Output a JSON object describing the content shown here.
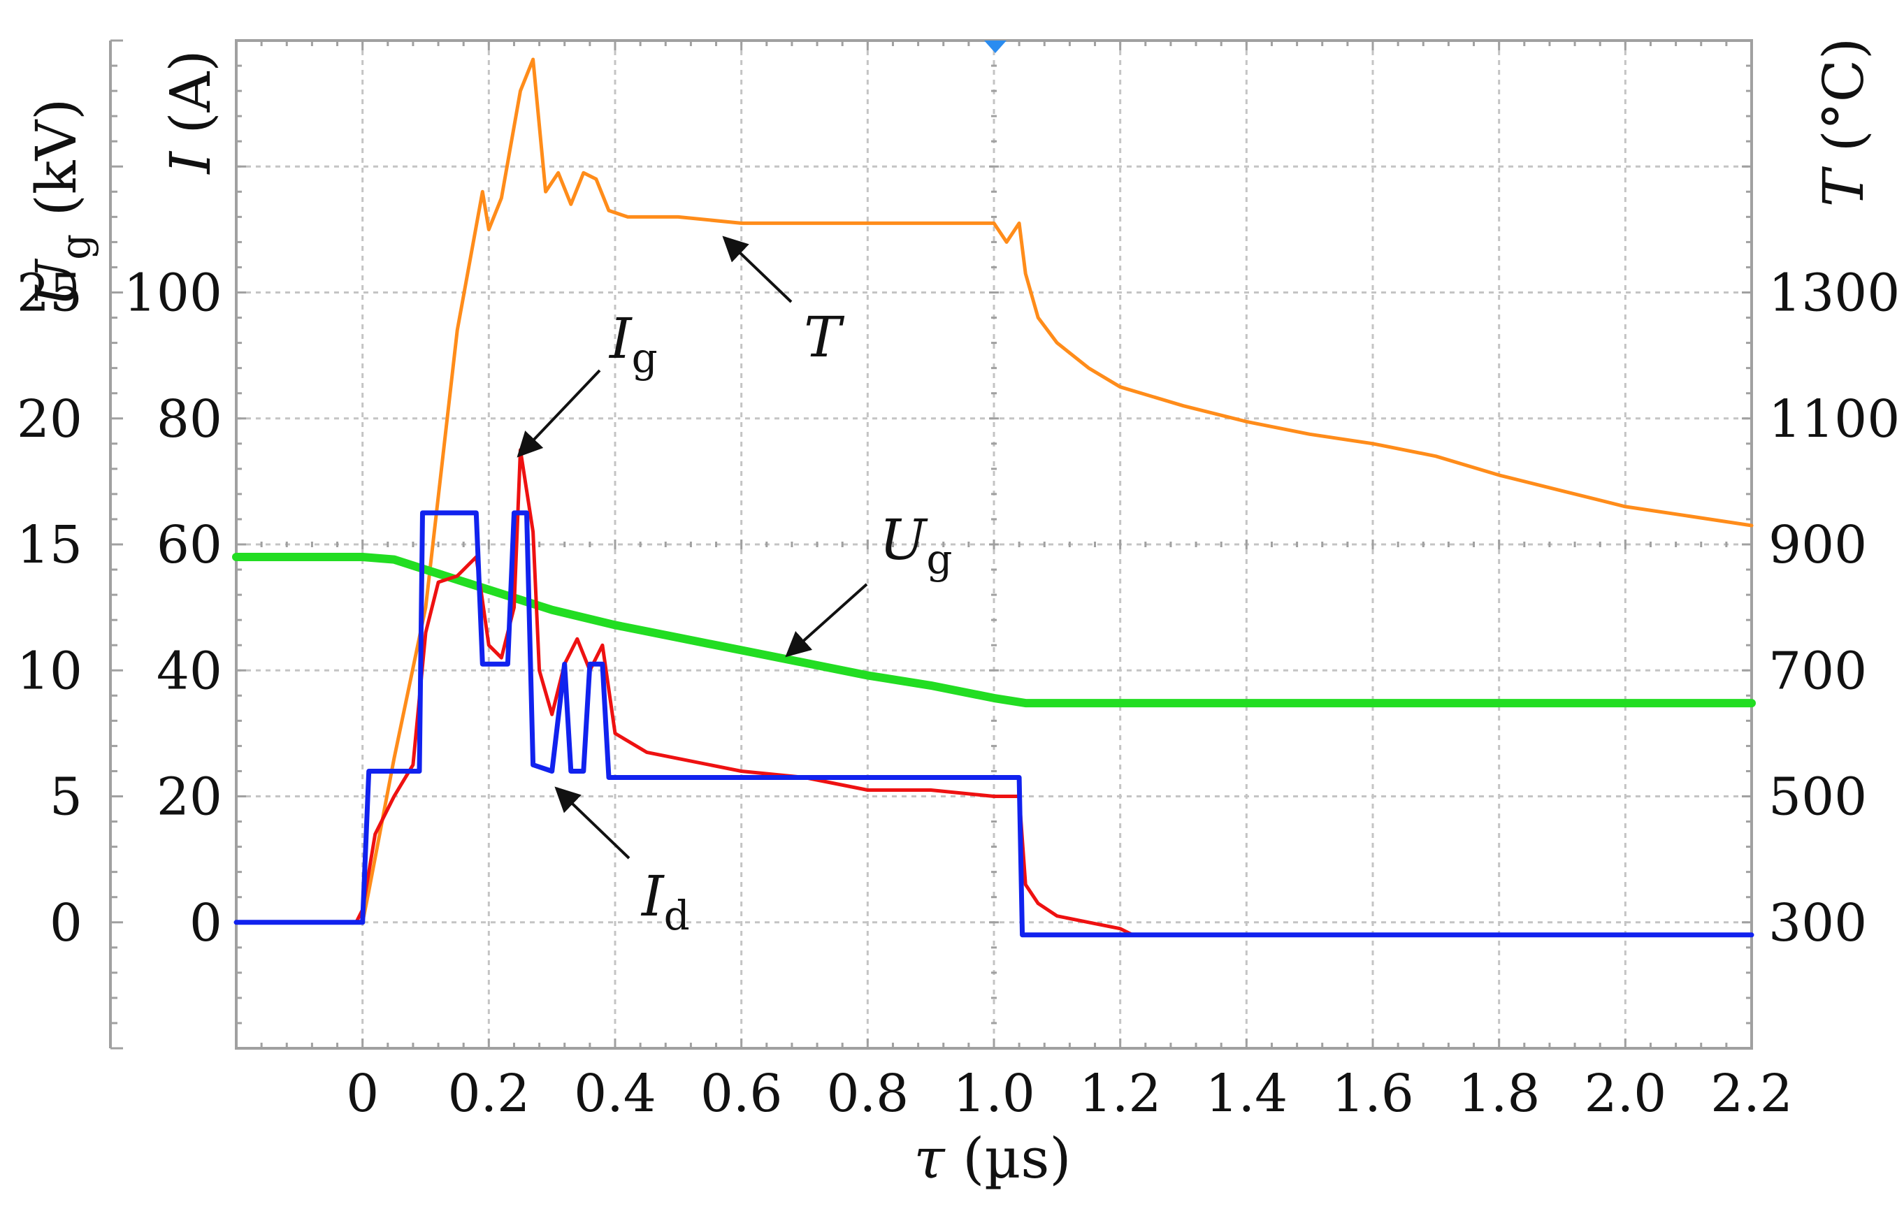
{
  "chart_data": {
    "type": "line",
    "title": "",
    "x_axis": {
      "label_symbol": "τ",
      "label_unit": "(µs)",
      "range": [
        -0.2,
        2.2
      ],
      "ticks": [
        "0",
        "0.2",
        "0.4",
        "0.6",
        "0.8",
        "1.0",
        "1.2",
        "1.4",
        "1.6",
        "1.8",
        "2.0",
        "2.2"
      ],
      "tick_values": [
        0,
        0.2,
        0.4,
        0.6,
        0.8,
        1.0,
        1.2,
        1.4,
        1.6,
        1.8,
        2.0,
        2.2
      ]
    },
    "y_axis_left_outer": {
      "label_symbol": "U",
      "label_sub": "g",
      "label_unit": "(kV)",
      "range": [
        -5,
        35
      ],
      "ticks": [
        "0",
        "5",
        "10",
        "15",
        "20",
        "25"
      ],
      "tick_values": [
        0,
        5,
        10,
        15,
        20,
        25
      ]
    },
    "y_axis_left_inner": {
      "label_symbol": "I",
      "label_unit": "(A)",
      "range": [
        -20,
        140
      ],
      "ticks": [
        "0",
        "20",
        "40",
        "60",
        "80",
        "100"
      ],
      "tick_values": [
        0,
        20,
        40,
        60,
        80,
        100
      ]
    },
    "y_axis_right": {
      "label_symbol": "T",
      "label_unit": "(°C)",
      "range": [
        100,
        1700
      ],
      "ticks": [
        "300",
        "500",
        "700",
        "900",
        "1100",
        "1300"
      ],
      "tick_values": [
        300,
        500,
        700,
        900,
        1100,
        1300
      ]
    },
    "grid": true,
    "series": [
      {
        "name": "T",
        "axis": "right",
        "color": "#ff8c1a",
        "x": [
          -0.2,
          -0.05,
          0.0,
          0.01,
          0.05,
          0.1,
          0.15,
          0.19,
          0.2,
          0.22,
          0.25,
          0.27,
          0.29,
          0.31,
          0.33,
          0.35,
          0.37,
          0.39,
          0.42,
          0.5,
          0.6,
          0.7,
          0.8,
          0.9,
          1.0,
          1.02,
          1.04,
          1.05,
          1.07,
          1.1,
          1.15,
          1.2,
          1.3,
          1.4,
          1.5,
          1.6,
          1.7,
          1.8,
          1.9,
          2.0,
          2.1,
          2.2
        ],
        "y": [
          300,
          300,
          300,
          350,
          560,
          800,
          1240,
          1460,
          1400,
          1450,
          1620,
          1670,
          1460,
          1490,
          1440,
          1490,
          1480,
          1430,
          1420,
          1420,
          1410,
          1410,
          1410,
          1410,
          1410,
          1380,
          1410,
          1330,
          1260,
          1220,
          1180,
          1150,
          1120,
          1095,
          1075,
          1060,
          1040,
          1010,
          985,
          960,
          945,
          930
        ]
      },
      {
        "name": "Ug",
        "axis": "left_outer",
        "color": "#22dd22",
        "x": [
          -0.2,
          0.0,
          0.05,
          0.1,
          0.2,
          0.3,
          0.4,
          0.5,
          0.6,
          0.7,
          0.8,
          0.9,
          1.0,
          1.05,
          1.2,
          1.5,
          1.8,
          2.2
        ],
        "y": [
          14.5,
          14.5,
          14.4,
          14.0,
          13.2,
          12.4,
          11.8,
          11.3,
          10.8,
          10.3,
          9.8,
          9.4,
          8.9,
          8.7,
          8.7,
          8.7,
          8.7,
          8.7
        ]
      },
      {
        "name": "Id",
        "axis": "left_inner",
        "color": "#ee1111",
        "x": [
          -0.2,
          -0.01,
          0.0,
          0.02,
          0.05,
          0.08,
          0.1,
          0.12,
          0.15,
          0.18,
          0.2,
          0.22,
          0.24,
          0.25,
          0.27,
          0.28,
          0.3,
          0.32,
          0.34,
          0.36,
          0.38,
          0.4,
          0.45,
          0.5,
          0.6,
          0.7,
          0.8,
          0.9,
          1.0,
          1.04,
          1.05,
          1.07,
          1.1,
          1.15,
          1.2,
          1.22,
          1.5,
          2.0,
          2.2
        ],
        "y": [
          0,
          0,
          2,
          14,
          20,
          25,
          46,
          54,
          55,
          58,
          44,
          42,
          50,
          75,
          62,
          40,
          33,
          41,
          45,
          40,
          44,
          30,
          27,
          26,
          24,
          23,
          21,
          21,
          20,
          20,
          6,
          3,
          1,
          0,
          -1,
          -2,
          -2,
          -2,
          -2
        ]
      },
      {
        "name": "Ig",
        "axis": "left_inner",
        "color": "#1122ee",
        "x": [
          -0.2,
          -0.01,
          0.0,
          0.01,
          0.09,
          0.095,
          0.18,
          0.19,
          0.23,
          0.24,
          0.26,
          0.27,
          0.3,
          0.32,
          0.33,
          0.35,
          0.36,
          0.38,
          0.39,
          0.45,
          0.6,
          0.8,
          1.0,
          1.04,
          1.045,
          1.5,
          2.0,
          2.2
        ],
        "y": [
          0,
          0,
          0,
          24,
          24,
          65,
          65,
          41,
          41,
          65,
          65,
          25,
          24,
          41,
          24,
          24,
          41,
          41,
          23,
          23,
          23,
          23,
          23,
          23,
          -2,
          -2,
          -2,
          -2
        ]
      }
    ],
    "annotations": [
      {
        "symbol": "T",
        "sub": ""
      },
      {
        "symbol": "I",
        "sub": "g"
      },
      {
        "symbol": "U",
        "sub": "g"
      },
      {
        "symbol": "I",
        "sub": "d"
      }
    ]
  }
}
